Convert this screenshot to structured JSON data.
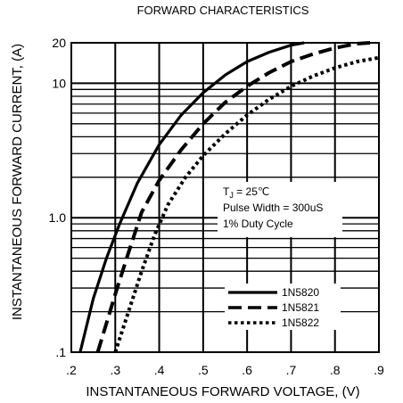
{
  "chart_data": {
    "type": "line",
    "title": "FORWARD CHARACTERISTICS",
    "xlabel": "INSTANTANEOUS FORWARD VOLTAGE, (V)",
    "ylabel": "INSTANTANEOUS FORWARD CURRENT, (A)",
    "xlim": [
      0.2,
      0.9
    ],
    "ylim": [
      0.1,
      20
    ],
    "yscale": "log",
    "grid": true,
    "x_tick_labels": [
      ".2",
      ".3",
      ".4",
      ".5",
      ".6",
      ".7",
      ".8",
      ".9"
    ],
    "y_tick_labels": [
      {
        "value": 0.1,
        "label": ".1"
      },
      {
        "value": 1,
        "label": "1.0"
      },
      {
        "value": 10,
        "label": "10"
      },
      {
        "value": 20,
        "label": "20"
      }
    ],
    "annotation": {
      "line1_main": "T",
      "line1_sub": "J",
      "line1_rest": " = 25℃",
      "line2": "Pulse Width = 300uS",
      "line3": "1% Duty Cycle"
    },
    "legend_position": "lower-right",
    "series": [
      {
        "name": "1N5820",
        "style": "solid",
        "color": "#000000",
        "points": [
          [
            0.22,
            0.1
          ],
          [
            0.25,
            0.25
          ],
          [
            0.28,
            0.5
          ],
          [
            0.31,
            0.9
          ],
          [
            0.35,
            1.8
          ],
          [
            0.4,
            3.5
          ],
          [
            0.45,
            5.8
          ],
          [
            0.5,
            8.5
          ],
          [
            0.55,
            11.5
          ],
          [
            0.6,
            14.5
          ],
          [
            0.65,
            17
          ],
          [
            0.7,
            19.2
          ],
          [
            0.73,
            20
          ]
        ]
      },
      {
        "name": "1N5821",
        "style": "dashed",
        "color": "#000000",
        "points": [
          [
            0.26,
            0.1
          ],
          [
            0.3,
            0.27
          ],
          [
            0.33,
            0.55
          ],
          [
            0.36,
            1.1
          ],
          [
            0.4,
            1.9
          ],
          [
            0.45,
            3.2
          ],
          [
            0.5,
            5.0
          ],
          [
            0.55,
            7.2
          ],
          [
            0.6,
            9.5
          ],
          [
            0.65,
            12
          ],
          [
            0.7,
            14.5
          ],
          [
            0.75,
            16.5
          ],
          [
            0.8,
            18.3
          ],
          [
            0.85,
            19.7
          ],
          [
            0.88,
            20
          ]
        ]
      },
      {
        "name": "1N5822",
        "style": "dotted",
        "color": "#000000",
        "points": [
          [
            0.3,
            0.1
          ],
          [
            0.33,
            0.2
          ],
          [
            0.36,
            0.4
          ],
          [
            0.39,
            0.75
          ],
          [
            0.42,
            1.25
          ],
          [
            0.46,
            2.0
          ],
          [
            0.5,
            2.9
          ],
          [
            0.55,
            4.2
          ],
          [
            0.6,
            5.8
          ],
          [
            0.65,
            7.6
          ],
          [
            0.7,
            9.5
          ],
          [
            0.75,
            11.3
          ],
          [
            0.8,
            13
          ],
          [
            0.85,
            14.5
          ],
          [
            0.9,
            15.5
          ]
        ]
      }
    ]
  }
}
